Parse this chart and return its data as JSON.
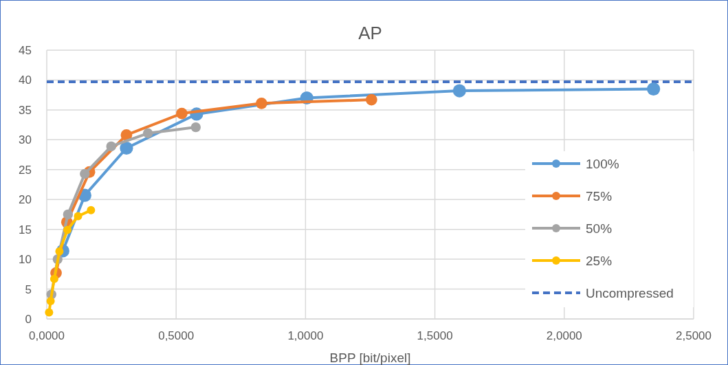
{
  "chart_data": {
    "type": "line",
    "title": "AP",
    "xlabel": "BPP [bit/pixel]",
    "xlim": [
      0,
      2.5
    ],
    "xticks": [
      {
        "value": 0,
        "label": "0,0000"
      },
      {
        "value": 0.5,
        "label": "0,5000"
      },
      {
        "value": 1,
        "label": "1,0000"
      },
      {
        "value": 1.5,
        "label": "1,5000"
      },
      {
        "value": 2,
        "label": "2,0000"
      },
      {
        "value": 2.5,
        "label": "2,5000"
      }
    ],
    "ylim": [
      0,
      45
    ],
    "yticks": [
      0,
      5,
      10,
      15,
      20,
      25,
      30,
      35,
      40,
      45
    ],
    "grid": true,
    "legend": "right",
    "marker": "circle",
    "line_style": "solid",
    "series": [
      {
        "name": "100%",
        "color": "#5b9bd5",
        "x": [
          0.062,
          0.147,
          0.308,
          0.579,
          1.005,
          1.595,
          2.345
        ],
        "values": [
          11.4,
          20.7,
          28.6,
          34.3,
          37.0,
          38.2,
          38.5
        ]
      },
      {
        "name": "75%",
        "color": "#ed7d31",
        "x": [
          0.036,
          0.078,
          0.165,
          0.308,
          0.522,
          0.83,
          1.255
        ],
        "values": [
          7.7,
          16.2,
          24.6,
          30.8,
          34.4,
          36.1,
          36.7
        ]
      },
      {
        "name": "50%",
        "color": "#a5a5a5",
        "x": [
          0.018,
          0.042,
          0.082,
          0.147,
          0.249,
          0.391,
          0.576
        ],
        "values": [
          4.1,
          10.0,
          17.5,
          24.3,
          28.9,
          31.1,
          32.1
        ]
      },
      {
        "name": "25%",
        "color": "#ffc000",
        "x": [
          0.009,
          0.015,
          0.029,
          0.049,
          0.08,
          0.121,
          0.171
        ],
        "values": [
          1.1,
          3.0,
          6.7,
          11.3,
          14.9,
          17.2,
          18.2
        ]
      }
    ],
    "ref_lines": [
      {
        "axis": "y",
        "value": 39.7,
        "label": "Uncompressed",
        "color": "#4472c4",
        "line_style": "dashed"
      }
    ]
  }
}
